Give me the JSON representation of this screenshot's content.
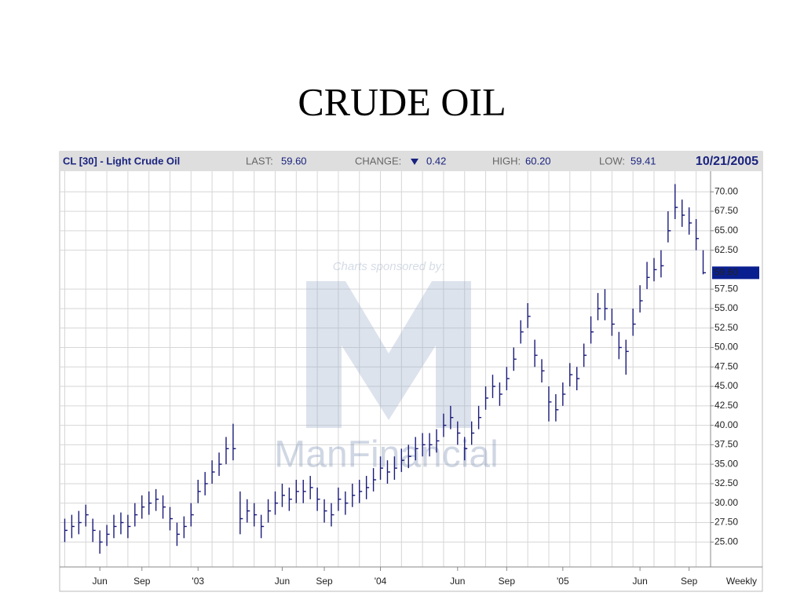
{
  "chart_data": {
    "type": "ohlc",
    "title": "CRUDE OIL",
    "symbol": "CL [30] - Light Crude Oil",
    "stats": [
      {
        "label": "LAST:",
        "value": "59.60"
      },
      {
        "label": "CHANGE:",
        "value": "0.42"
      },
      {
        "label": "HIGH:",
        "value": "60.20"
      },
      {
        "label": "LOW:",
        "value": "59.41"
      }
    ],
    "date": "10/21/2005",
    "watermark": {
      "text": "Charts sponsored by:",
      "brand": "ManFinancial"
    },
    "interval": "Weekly",
    "categories": [
      null,
      null,
      null,
      null,
      null,
      "Jun",
      null,
      null,
      null,
      null,
      null,
      "Sep",
      null,
      null,
      null,
      null,
      null,
      null,
      null,
      "'03",
      null,
      null,
      null,
      null,
      null,
      null,
      null,
      null,
      null,
      null,
      null,
      "Jun",
      null,
      null,
      null,
      null,
      null,
      "Sep",
      null,
      null,
      null,
      null,
      null,
      null,
      null,
      "'04",
      null,
      null,
      null,
      null,
      null,
      null,
      null,
      null,
      null,
      null,
      "Jun",
      null,
      null,
      null,
      null,
      null,
      null,
      "Sep",
      null,
      null,
      null,
      null,
      null,
      null,
      null,
      "'05",
      null,
      null,
      null,
      null,
      null,
      null,
      null,
      null,
      null,
      null,
      "Jun",
      null,
      null,
      null,
      null,
      null,
      null,
      "Sep",
      null,
      null
    ],
    "high": [
      28,
      28.5,
      29,
      29.8,
      28,
      26.5,
      27.2,
      28.5,
      28.8,
      28.5,
      30,
      31,
      31.5,
      31.8,
      31,
      29.5,
      27.5,
      28.3,
      30,
      33,
      34,
      35.5,
      36.5,
      38.5,
      40.2,
      31.5,
      30.5,
      30,
      28.5,
      30.5,
      31.5,
      32.5,
      32,
      33,
      33,
      33.5,
      32,
      30.5,
      30,
      32,
      31.5,
      32.5,
      33,
      33.5,
      34.5,
      36,
      35.5,
      36,
      37,
      37.5,
      38.5,
      39,
      39,
      39.5,
      41.5,
      42.5,
      40.5,
      38.5,
      40.5,
      42.5,
      45,
      46.5,
      45.5,
      47.5,
      50,
      53.5,
      55.7,
      51,
      48.5,
      45,
      44,
      45.5,
      48,
      47.5,
      50.5,
      54,
      57,
      57.5,
      55,
      52,
      51,
      55,
      58,
      61,
      61.5,
      62.5,
      67.5,
      71,
      69,
      68,
      66.5,
      62.5
    ],
    "low": [
      25,
      25.5,
      26,
      27,
      25,
      23.5,
      24.5,
      25.5,
      26,
      25.5,
      27,
      28,
      28.5,
      29,
      28,
      26.5,
      24.5,
      25.5,
      27,
      30,
      31,
      32.5,
      33.5,
      35,
      35.5,
      26,
      27.5,
      27,
      25.5,
      27.5,
      28.5,
      29.5,
      29,
      30,
      30,
      30.5,
      29,
      27.5,
      27,
      29,
      28.5,
      29.5,
      30,
      30.5,
      31.5,
      33,
      32.5,
      33,
      34,
      34.5,
      35.5,
      36,
      36,
      36.5,
      38.5,
      39.5,
      37.5,
      35.5,
      37.5,
      39.5,
      42,
      43.5,
      42.5,
      44.5,
      47,
      50.5,
      52.5,
      47.5,
      45.5,
      40.5,
      40.5,
      42.5,
      45,
      44.5,
      47.5,
      50.5,
      53.5,
      53.5,
      51.5,
      48.5,
      46.5,
      51.5,
      54.5,
      57.5,
      58.5,
      59,
      63.5,
      66.5,
      65.5,
      64.5,
      62.5,
      59.4
    ],
    "close": [
      26.5,
      27,
      27.5,
      28.5,
      26.5,
      25,
      26,
      27,
      27.5,
      27,
      28.5,
      29.5,
      30,
      30.5,
      29.5,
      28,
      26,
      27,
      28.5,
      31.5,
      32.5,
      34,
      35,
      37,
      37,
      28,
      29,
      28.5,
      27,
      29,
      30,
      31,
      30.5,
      31.5,
      31.5,
      32,
      30.5,
      29,
      28.5,
      30.5,
      30,
      31,
      31.5,
      32,
      33,
      34.5,
      34,
      34.5,
      35.5,
      36,
      37,
      37.5,
      37.5,
      38,
      40,
      41,
      39,
      37,
      39,
      41,
      43.5,
      45,
      44,
      46,
      48.5,
      52,
      54,
      49,
      47,
      43,
      42,
      44,
      46.5,
      46,
      49,
      52,
      55,
      55,
      53,
      50,
      49.5,
      53,
      56,
      59,
      60,
      60.5,
      65,
      68,
      67,
      66,
      64,
      59.6
    ],
    "color": "#1a1a7a",
    "ylim": [
      22,
      72.25
    ],
    "yticks": [
      {
        "value": 25,
        "label": "25.00"
      },
      {
        "value": 27.5,
        "label": "27.50"
      },
      {
        "value": 30,
        "label": "30.00"
      },
      {
        "value": 32.5,
        "label": "32.50"
      },
      {
        "value": 35,
        "label": "35.00"
      },
      {
        "value": 37.5,
        "label": "37.50"
      },
      {
        "value": 40,
        "label": "40.00"
      },
      {
        "value": 42.5,
        "label": "42.50"
      },
      {
        "value": 45,
        "label": "45.00"
      },
      {
        "value": 47.5,
        "label": "47.50"
      },
      {
        "value": 50,
        "label": "50.00"
      },
      {
        "value": 52.5,
        "label": "52.50"
      },
      {
        "value": 55,
        "label": "55.00"
      },
      {
        "value": 57.5,
        "label": "57.50"
      },
      {
        "value": 62.5,
        "label": "62.50"
      },
      {
        "value": 65,
        "label": "65.00"
      },
      {
        "value": 67.5,
        "label": "67.50"
      },
      {
        "value": 70,
        "label": "70.00"
      }
    ],
    "last_marker": {
      "value": 59.6,
      "label": "59.60"
    },
    "grid": true
  }
}
